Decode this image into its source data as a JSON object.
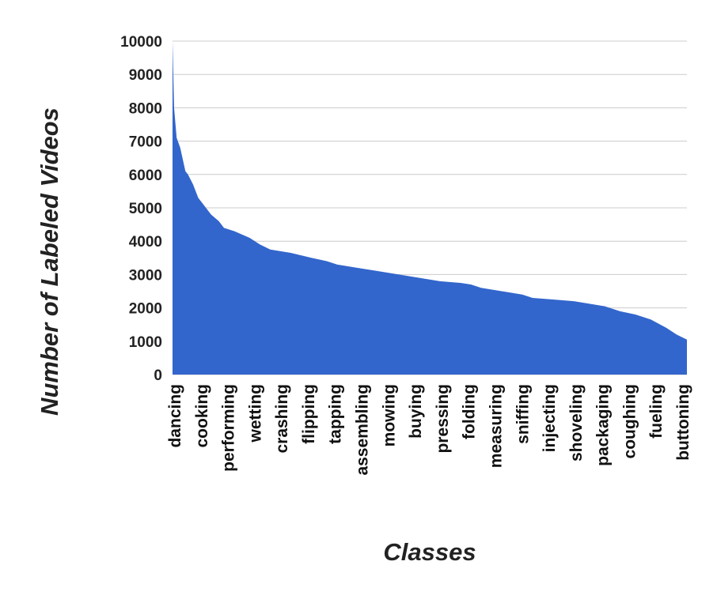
{
  "chart_data": {
    "type": "area",
    "title": "",
    "xlabel": "Classes",
    "ylabel": "Number of Labeled Videos",
    "ylim": [
      0,
      10000
    ],
    "yticks": [
      0,
      1000,
      2000,
      3000,
      4000,
      5000,
      6000,
      7000,
      8000,
      9000,
      10000
    ],
    "grid": true,
    "color": "#3366cc",
    "labeled_categories": [
      "dancing",
      "cooking",
      "performing",
      "wetting",
      "crashing",
      "flipping",
      "tapping",
      "assembling",
      "mowing",
      "buying",
      "pressing",
      "folding",
      "measuring",
      "sniffing",
      "injecting",
      "shoveling",
      "packaging",
      "coughing",
      "fueling",
      "buttoning"
    ],
    "series": [
      {
        "x": [
          0,
          0.003,
          0.008,
          0.015,
          0.025,
          0.03,
          0.04,
          0.05,
          0.06,
          0.065,
          0.075,
          0.09,
          0.1,
          0.12,
          0.15,
          0.17,
          0.19,
          0.23,
          0.27,
          0.3,
          0.32,
          0.36,
          0.4,
          0.44,
          0.48,
          0.52,
          0.56,
          0.58,
          0.6,
          0.64,
          0.68,
          0.7,
          0.74,
          0.78,
          0.8,
          0.84,
          0.87,
          0.9,
          0.93,
          0.96,
          0.98,
          1.0
        ],
        "y": [
          10000,
          8000,
          7100,
          6800,
          6100,
          6000,
          5700,
          5300,
          5100,
          5000,
          4800,
          4600,
          4400,
          4300,
          4100,
          3900,
          3750,
          3650,
          3500,
          3400,
          3300,
          3200,
          3100,
          3000,
          2900,
          2800,
          2750,
          2700,
          2600,
          2500,
          2400,
          2300,
          2250,
          2200,
          2150,
          2050,
          1900,
          1800,
          1650,
          1400,
          1200,
          1050
        ]
      }
    ]
  }
}
